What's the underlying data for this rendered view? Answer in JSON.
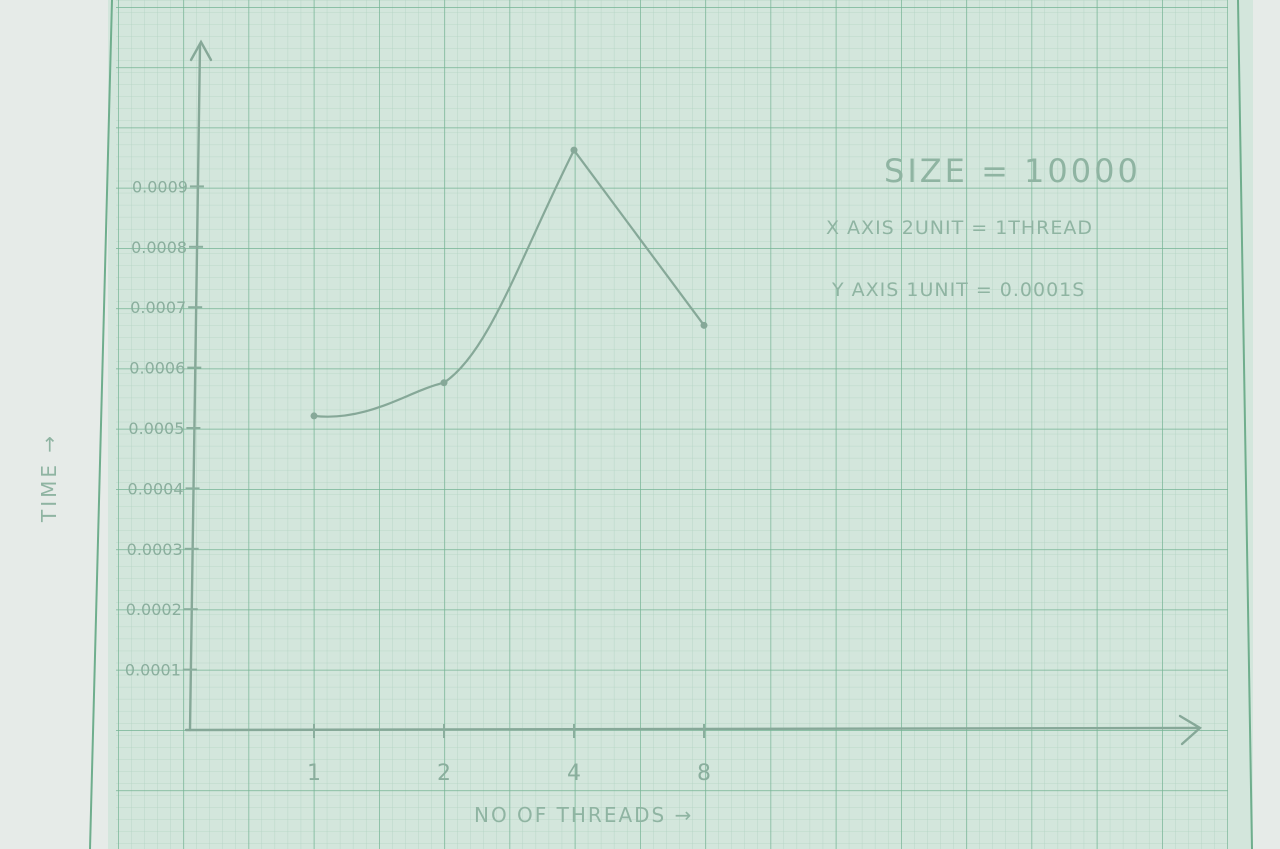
{
  "chart_data": {
    "type": "line",
    "title": "",
    "xlabel": "NO OF THREADS →",
    "ylabel": "TIME →",
    "x": [
      1,
      2,
      4,
      8
    ],
    "x_tick_labels": [
      "1",
      "2",
      "4",
      "8"
    ],
    "series": [
      {
        "values": [
          0.00052,
          0.000575,
          0.00096,
          0.00067
        ]
      }
    ],
    "y_ticks": [
      0.0001,
      0.0002,
      0.0003,
      0.0004,
      0.0005,
      0.0006,
      0.0007,
      0.0008,
      0.0009
    ],
    "y_tick_labels": [
      "0.0001",
      "0.0002",
      "0.0003",
      "0.0004",
      "0.0005",
      "0.0006",
      "0.0007",
      "0.0008",
      "0.0009"
    ],
    "ylim": [
      0,
      0.00108
    ],
    "grid": true,
    "annotations": {
      "size": "SIZE = 10000",
      "x_scale": "X AXIS  2UNIT = 1THREAD",
      "y_scale": "Y AXIS  1UNIT = 0.0001S"
    }
  },
  "colors": {
    "paper": "#d3e6dc",
    "grid_minor": "#a9cdbb",
    "grid_major": "#6fae8d",
    "ink": "#8aae9d",
    "curve": "#86a898"
  }
}
